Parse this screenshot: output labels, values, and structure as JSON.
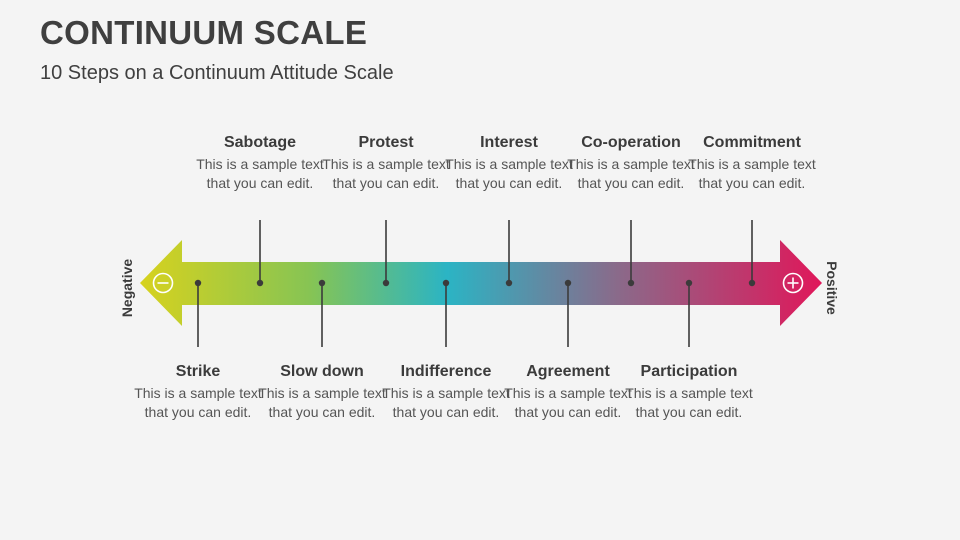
{
  "title": "CONTINUUM SCALE",
  "subtitle": "10 Steps on a Continuum Attitude Scale",
  "negative_label": "Negative",
  "positive_label": "Positive",
  "colors": {
    "gradient": [
      "#d7d21e",
      "#86c454",
      "#2bb4c4",
      "#8a6a8a",
      "#e0175a"
    ],
    "connector": "#3b3b3b"
  },
  "steps_top": [
    {
      "title": "Sabotage",
      "desc": "This is a sample text that you can edit."
    },
    {
      "title": "Protest",
      "desc": "This is a sample text that you can edit."
    },
    {
      "title": "Interest",
      "desc": "This is a sample text that you can edit."
    },
    {
      "title": "Co-operation",
      "desc": "This is a sample text that you can edit."
    },
    {
      "title": "Commitment",
      "desc": "This is a sample text that you can edit."
    }
  ],
  "steps_bottom": [
    {
      "title": "Strike",
      "desc": "This is a sample text that you can edit."
    },
    {
      "title": "Slow down",
      "desc": "This is a sample text that you can edit."
    },
    {
      "title": "Indifference",
      "desc": "This is a sample text that you can edit."
    },
    {
      "title": "Agreement",
      "desc": "This is a sample text that you can edit."
    },
    {
      "title": "Participation",
      "desc": "This is a sample text that you can edit."
    }
  ]
}
